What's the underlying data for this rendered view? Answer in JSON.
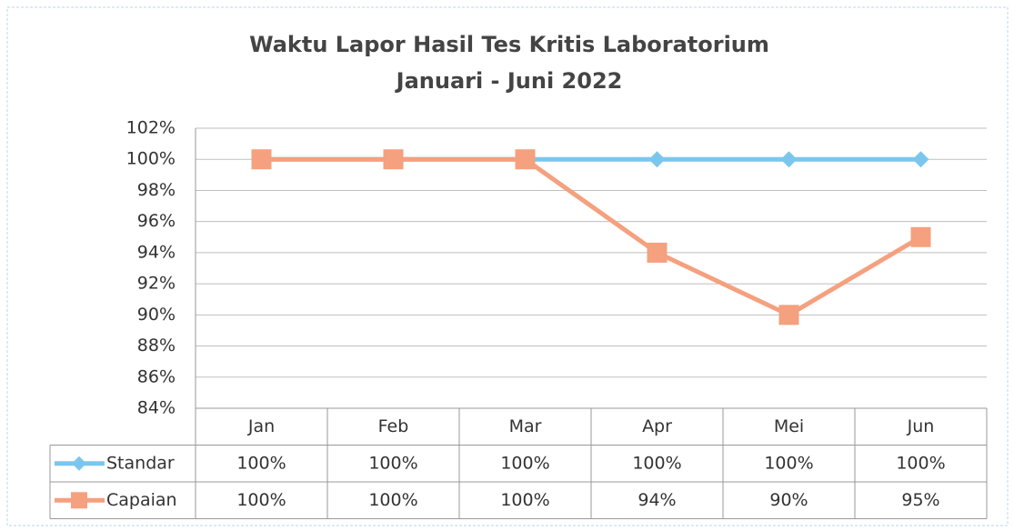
{
  "chart_data": {
    "type": "line",
    "title": "Waktu Lapor Hasil Tes Kritis Laboratorium",
    "subtitle": "Januari - Juni 2022",
    "categories": [
      "Jan",
      "Feb",
      "Mar",
      "Apr",
      "Mei",
      "Jun"
    ],
    "series": [
      {
        "name": "Standar",
        "color": "#7cc6ee",
        "marker": "diamond",
        "values": [
          100,
          100,
          100,
          100,
          100,
          100
        ],
        "value_labels": [
          "100%",
          "100%",
          "100%",
          "100%",
          "100%",
          "100%"
        ]
      },
      {
        "name": "Capaian",
        "color": "#f5a07e",
        "marker": "square",
        "values": [
          100,
          100,
          100,
          94,
          90,
          95
        ],
        "value_labels": [
          "100%",
          "100%",
          "100%",
          "94%",
          "90%",
          "95%"
        ]
      }
    ],
    "ylim": [
      84,
      102
    ],
    "yticks": [
      {
        "value": 84,
        "label": "84%"
      },
      {
        "value": 86,
        "label": "86%"
      },
      {
        "value": 88,
        "label": "88%"
      },
      {
        "value": 90,
        "label": "90%"
      },
      {
        "value": 92,
        "label": "92%"
      },
      {
        "value": 94,
        "label": "94%"
      },
      {
        "value": 96,
        "label": "96%"
      },
      {
        "value": 98,
        "label": "98%"
      },
      {
        "value": 100,
        "label": "100%"
      },
      {
        "value": 102,
        "label": "102%"
      }
    ],
    "grid": true
  }
}
